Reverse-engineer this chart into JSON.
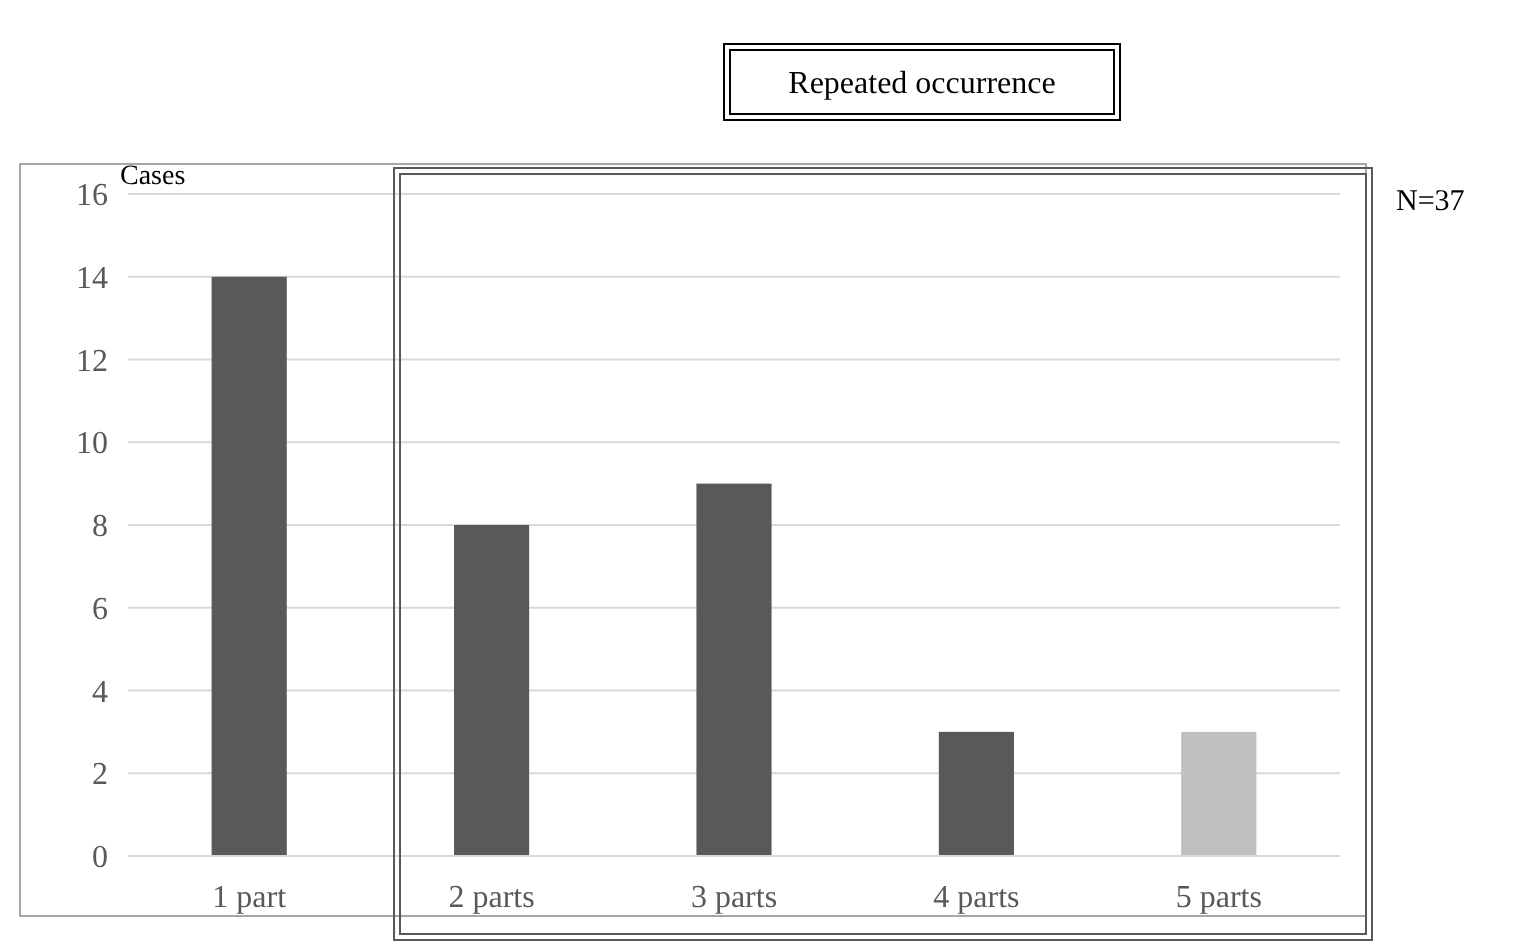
{
  "chart_data": {
    "type": "bar",
    "ylabel": "Cases",
    "categories": [
      "1 part",
      "2 parts",
      "3 parts",
      "4 parts",
      "5 parts"
    ],
    "values": [
      14,
      8,
      9,
      3,
      3
    ],
    "colors": [
      "#595959",
      "#595959",
      "#595959",
      "#595959",
      "#bfbfbf"
    ],
    "ylim": [
      0,
      16
    ],
    "yticks": [
      0,
      2,
      4,
      6,
      8,
      10,
      12,
      14,
      16
    ],
    "grid": "y",
    "annotations": [
      "Repeated occurrence",
      "N=37"
    ]
  }
}
